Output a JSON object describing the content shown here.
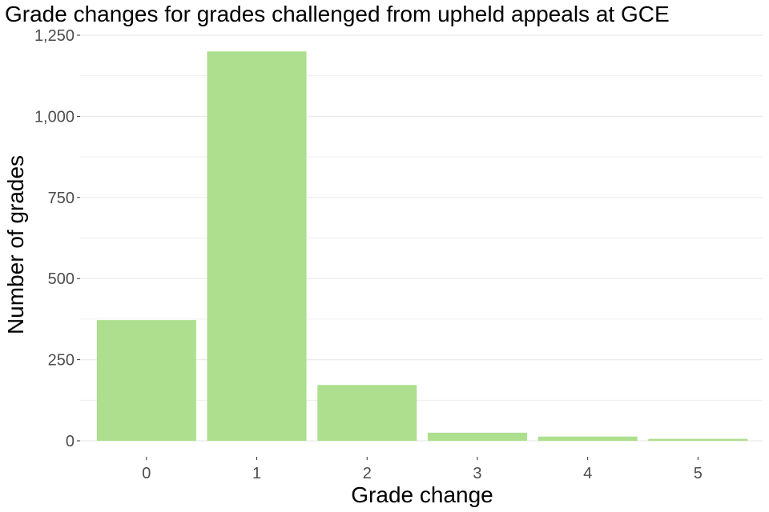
{
  "chart_data": {
    "type": "bar",
    "title": "Grade changes for grades challenged from upheld appeals at GCE",
    "xlabel": "Grade change",
    "ylabel": "Number of grades",
    "categories": [
      "0",
      "1",
      "2",
      "3",
      "4",
      "5"
    ],
    "values": [
      372,
      1200,
      172,
      25,
      13,
      6
    ],
    "ylim": [
      0,
      1250
    ],
    "yticks": [
      0,
      250,
      500,
      750,
      1000,
      1250
    ],
    "ytick_labels": [
      "0",
      "250",
      "500",
      "750",
      "1,000",
      "1,250"
    ],
    "grid": true,
    "legend": "none",
    "bar_color": "#addf8e",
    "grid_color": "#ebebeb"
  }
}
